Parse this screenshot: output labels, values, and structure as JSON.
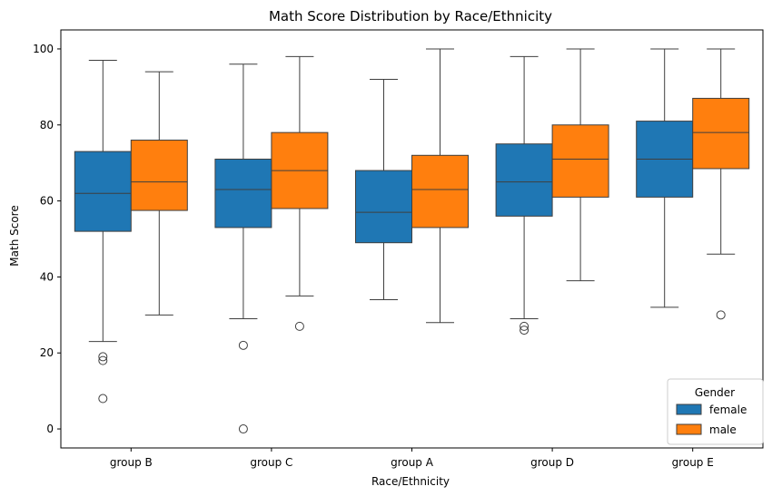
{
  "chart_data": {
    "type": "box",
    "title": "Math Score Distribution by Race/Ethnicity",
    "xlabel": "Race/Ethnicity",
    "ylabel": "Math Score",
    "ylim": [
      -5,
      105
    ],
    "yticks": [
      0,
      20,
      40,
      60,
      80,
      100
    ],
    "categories": [
      "group B",
      "group C",
      "group A",
      "group D",
      "group E"
    ],
    "legend": {
      "title": "Gender",
      "placement": "lower-right"
    },
    "series": [
      {
        "name": "female",
        "color": "#1f77b4",
        "boxes": [
          {
            "whisker_low": 23,
            "q1": 52,
            "median": 62,
            "q3": 73,
            "whisker_high": 97,
            "outliers": [
              19,
              18,
              8
            ]
          },
          {
            "whisker_low": 29,
            "q1": 53,
            "median": 63,
            "q3": 71,
            "whisker_high": 96,
            "outliers": [
              22,
              0
            ]
          },
          {
            "whisker_low": 34,
            "q1": 49,
            "median": 57,
            "q3": 68,
            "whisker_high": 92,
            "outliers": []
          },
          {
            "whisker_low": 29,
            "q1": 56,
            "median": 65,
            "q3": 75,
            "whisker_high": 98,
            "outliers": [
              27,
              26
            ]
          },
          {
            "whisker_low": 32,
            "q1": 61,
            "median": 71,
            "q3": 81,
            "whisker_high": 100,
            "outliers": []
          }
        ]
      },
      {
        "name": "male",
        "color": "#ff7f0e",
        "boxes": [
          {
            "whisker_low": 30,
            "q1": 57.5,
            "median": 65,
            "q3": 76,
            "whisker_high": 94,
            "outliers": []
          },
          {
            "whisker_low": 35,
            "q1": 58,
            "median": 68,
            "q3": 78,
            "whisker_high": 98,
            "outliers": [
              27
            ]
          },
          {
            "whisker_low": 28,
            "q1": 53,
            "median": 63,
            "q3": 72,
            "whisker_high": 100,
            "outliers": []
          },
          {
            "whisker_low": 39,
            "q1": 61,
            "median": 71,
            "q3": 80,
            "whisker_high": 100,
            "outliers": []
          },
          {
            "whisker_low": 46,
            "q1": 68.5,
            "median": 78,
            "q3": 87,
            "whisker_high": 100,
            "outliers": [
              30
            ]
          }
        ]
      }
    ]
  }
}
